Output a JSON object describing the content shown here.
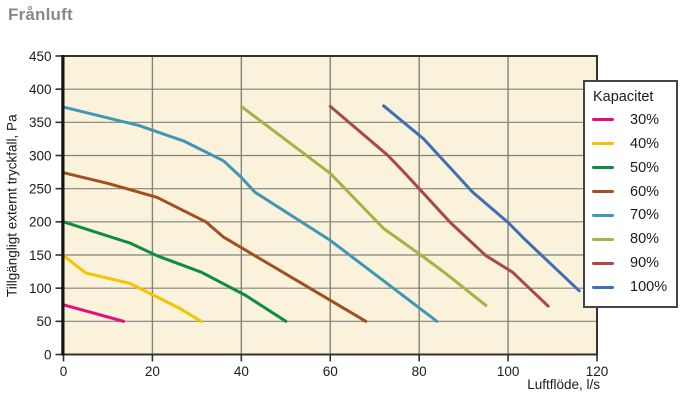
{
  "page": {
    "title": "Frånluft"
  },
  "colors": {
    "plot_bg": "#faf2da",
    "grid": "#83837a",
    "frame": "#34322c",
    "axis": "#14130f",
    "text": "#1b1b19",
    "title": "#8b8885"
  },
  "chart_data": {
    "type": "line",
    "title": "Frånluft",
    "xlabel": "Luftflöde, l/s",
    "ylabel": "Tillgängligt externt tryckfall, Pa",
    "xlim": [
      0,
      120
    ],
    "ylim": [
      0,
      450
    ],
    "xticks": [
      0,
      20,
      40,
      60,
      80,
      100,
      120
    ],
    "yticks": [
      0,
      50,
      100,
      150,
      200,
      250,
      300,
      350,
      400,
      450
    ],
    "grid": true,
    "legend_title": "Kapacitet",
    "legend_position": "right-overlay",
    "series": [
      {
        "name": "30%",
        "color": "#e50c7e",
        "points": [
          [
            0,
            75
          ],
          [
            13.5,
            50
          ]
        ]
      },
      {
        "name": "40%",
        "color": "#f5c400",
        "points": [
          [
            0,
            149
          ],
          [
            5,
            123
          ],
          [
            15,
            107
          ],
          [
            26,
            70
          ],
          [
            31,
            50
          ]
        ]
      },
      {
        "name": "50%",
        "color": "#0d8c44",
        "points": [
          [
            0,
            200
          ],
          [
            15,
            168
          ],
          [
            21,
            149
          ],
          [
            31,
            124
          ],
          [
            41,
            89
          ],
          [
            50,
            50
          ]
        ]
      },
      {
        "name": "60%",
        "color": "#a24f20",
        "points": [
          [
            0,
            274
          ],
          [
            10,
            258
          ],
          [
            21,
            237
          ],
          [
            32,
            200
          ],
          [
            36,
            177
          ],
          [
            68,
            50
          ]
        ]
      },
      {
        "name": "70%",
        "color": "#3f97b5",
        "points": [
          [
            0,
            373
          ],
          [
            17,
            345
          ],
          [
            27,
            322
          ],
          [
            36,
            292
          ],
          [
            40,
            267
          ],
          [
            43,
            245
          ],
          [
            60,
            172
          ],
          [
            84,
            50
          ]
        ]
      },
      {
        "name": "80%",
        "color": "#a3b345",
        "points": [
          [
            40,
            374
          ],
          [
            60,
            273
          ],
          [
            72,
            190
          ],
          [
            81,
            147
          ],
          [
            86,
            122
          ],
          [
            95,
            74
          ]
        ]
      },
      {
        "name": "90%",
        "color": "#ab4744",
        "points": [
          [
            60,
            374
          ],
          [
            73,
            300
          ],
          [
            77,
            272
          ],
          [
            80,
            250
          ],
          [
            87,
            199
          ],
          [
            95,
            149
          ],
          [
            101,
            124
          ],
          [
            109,
            73
          ]
        ]
      },
      {
        "name": "100%",
        "color": "#3f6fb5",
        "points": [
          [
            72,
            375
          ],
          [
            81,
            325
          ],
          [
            92,
            245
          ],
          [
            100,
            199
          ],
          [
            104,
            172
          ],
          [
            116,
            96
          ]
        ]
      }
    ]
  }
}
